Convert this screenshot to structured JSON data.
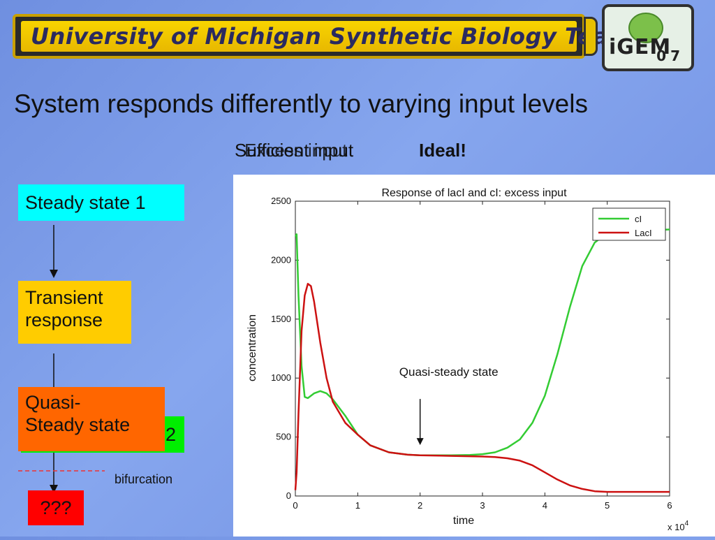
{
  "header": {
    "banner_text": "University of Michigan Synthetic Biology Team"
  },
  "logo": {
    "text": "iGEM",
    "year": "07"
  },
  "slide": {
    "title": "System responds differently to varying input levels",
    "subtitle_a": "Sufficient input",
    "subtitle_b": "Excess input",
    "subtitle_ideal": "Ideal!"
  },
  "flow": {
    "steady_state_1": "Steady state 1",
    "transient_line1": "Transient",
    "transient_line2": "response",
    "steady_state_2": "2",
    "quasi_line1": "Quasi-",
    "quasi_line2": "Steady state",
    "unknown": "???",
    "bifurcation": "bifurcation"
  },
  "colors": {
    "cyan": "#00ffff",
    "yellow": "#ffcc00",
    "green": "#00ee00",
    "orange": "#ff6600",
    "red": "#ff0000",
    "cI_line": "#33cc33",
    "LacI_line": "#cc1111"
  },
  "chart_data": {
    "type": "line",
    "title": "Response of lacI and cI: excess input",
    "xlabel": "time",
    "ylabel": "concentration",
    "x_multiplier_label": "x 10",
    "x_multiplier_exp": "4",
    "xlim": [
      0,
      6
    ],
    "ylim": [
      0,
      2500
    ],
    "xticks": [
      0,
      1,
      2,
      3,
      4,
      5,
      6
    ],
    "yticks": [
      0,
      500,
      1000,
      1500,
      2000,
      2500
    ],
    "legend_position": "top-right",
    "annotation": "Quasi-steady state",
    "annotation_point": [
      2,
      420
    ],
    "series": [
      {
        "name": "cI",
        "color": "#33cc33",
        "x": [
          0,
          0.02,
          0.05,
          0.1,
          0.15,
          0.2,
          0.3,
          0.4,
          0.5,
          0.6,
          0.8,
          1.0,
          1.2,
          1.5,
          1.8,
          2.0,
          2.5,
          2.8,
          3.0,
          3.2,
          3.4,
          3.6,
          3.8,
          4.0,
          4.2,
          4.4,
          4.6,
          4.8,
          5.0,
          5.2,
          5.5,
          6.0
        ],
        "y": [
          2200,
          2220,
          1700,
          1100,
          840,
          830,
          870,
          890,
          870,
          820,
          680,
          520,
          430,
          370,
          350,
          345,
          345,
          348,
          355,
          370,
          410,
          480,
          620,
          850,
          1200,
          1600,
          1950,
          2150,
          2230,
          2250,
          2250,
          2260
        ]
      },
      {
        "name": "LacI",
        "color": "#cc1111",
        "x": [
          0,
          0.02,
          0.05,
          0.1,
          0.15,
          0.2,
          0.25,
          0.3,
          0.4,
          0.5,
          0.6,
          0.8,
          1.0,
          1.2,
          1.5,
          1.8,
          2.0,
          2.5,
          3.0,
          3.2,
          3.4,
          3.6,
          3.8,
          4.0,
          4.2,
          4.4,
          4.6,
          4.8,
          5.0,
          5.5,
          6.0
        ],
        "y": [
          50,
          200,
          700,
          1400,
          1700,
          1800,
          1780,
          1650,
          1300,
          1000,
          800,
          620,
          520,
          430,
          370,
          350,
          345,
          340,
          335,
          330,
          320,
          300,
          260,
          200,
          140,
          90,
          60,
          40,
          35,
          35,
          35
        ]
      }
    ]
  }
}
